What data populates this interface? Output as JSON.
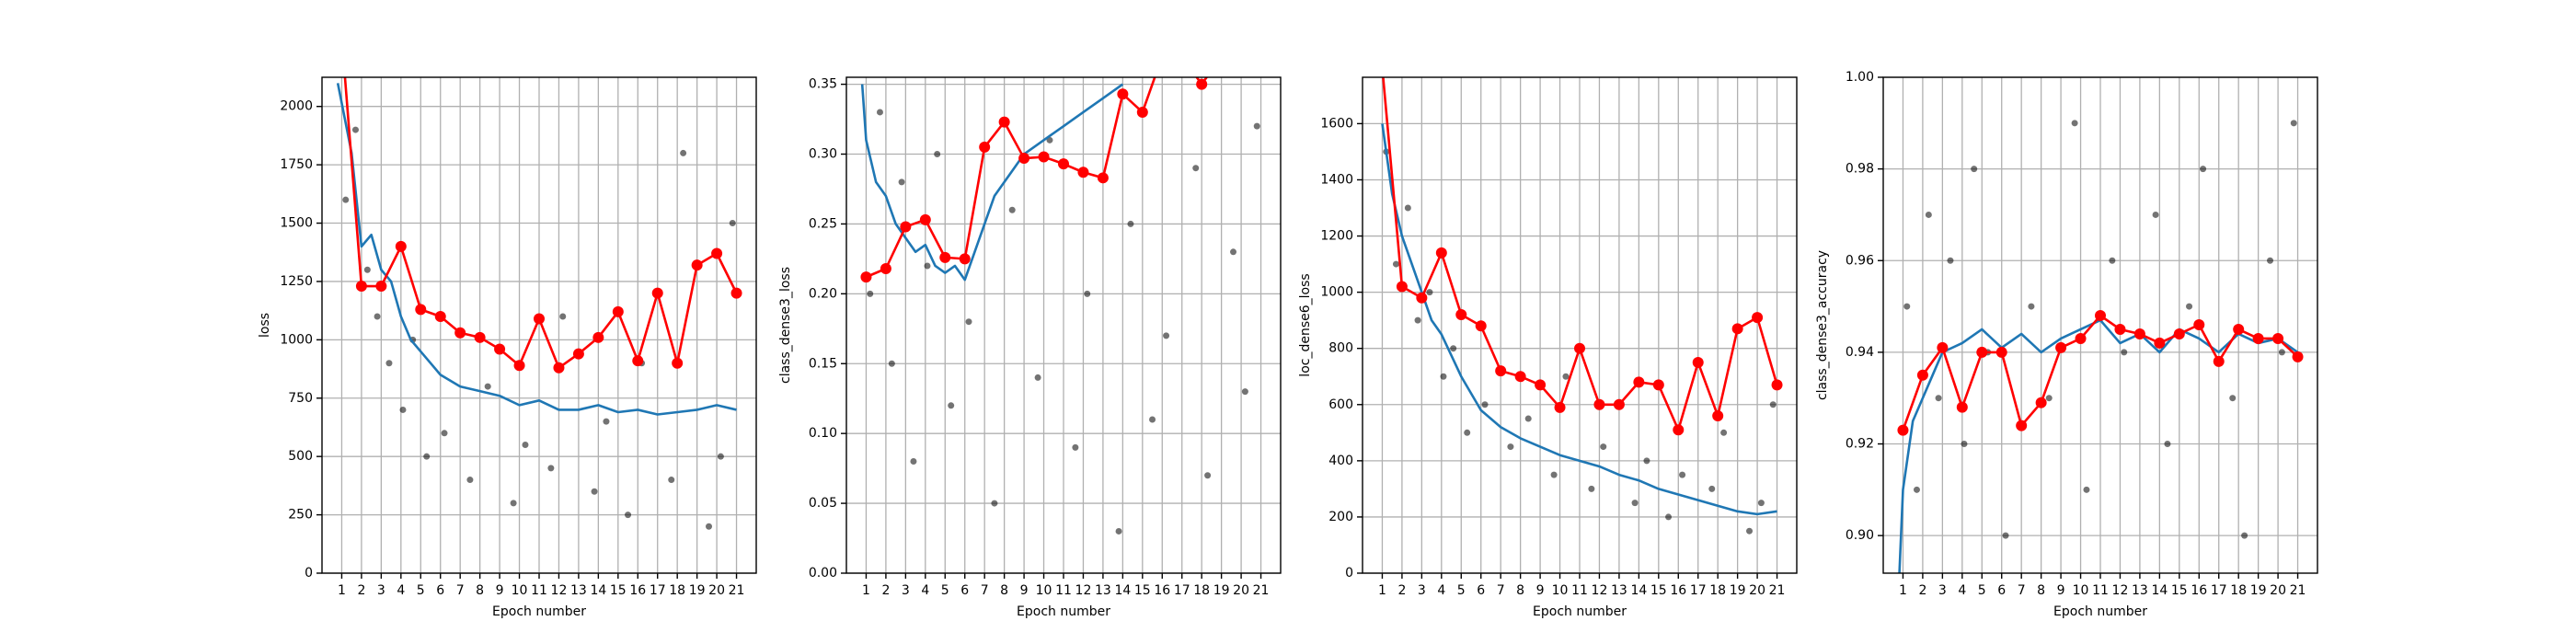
{
  "chart_data": [
    {
      "type": "scatter",
      "xlabel": "Epoch number",
      "ylabel": "loss",
      "grid": true,
      "xlim": [
        0,
        22
      ],
      "ylim": [
        0,
        2125
      ],
      "xticks": [
        1,
        2,
        3,
        4,
        5,
        6,
        7,
        8,
        9,
        10,
        11,
        12,
        13,
        14,
        15,
        16,
        17,
        18,
        19,
        20,
        21
      ],
      "yticks": [
        0,
        250,
        500,
        750,
        1000,
        1250,
        1500,
        1750,
        2000
      ],
      "series": [
        {
          "type": "scatter",
          "color": "#000000",
          "x": [
            1.2,
            1.7,
            2.3,
            2.8,
            3.4,
            4.1,
            4.6,
            5.3,
            6.2,
            7.5,
            8.4,
            9.7,
            10.3,
            11.6,
            12.2,
            13.8,
            14.4,
            15.5,
            16.2,
            17.7,
            18.3,
            19.6,
            20.2,
            20.8
          ],
          "values": [
            1600,
            1900,
            1300,
            1100,
            900,
            700,
            1000,
            500,
            600,
            400,
            800,
            300,
            550,
            450,
            1100,
            350,
            650,
            250,
            900,
            400,
            1800,
            200,
            500,
            1500
          ]
        },
        {
          "type": "line",
          "color": "#1f77b4",
          "x": [
            0.8,
            1.5,
            2,
            2.5,
            3,
            3.5,
            4,
            4.5,
            5,
            5.5,
            6,
            7,
            8,
            9,
            10,
            11,
            12,
            13,
            14,
            15,
            16,
            17,
            18,
            19,
            20,
            21
          ],
          "values": [
            2100,
            1800,
            1400,
            1450,
            1300,
            1250,
            1100,
            1000,
            950,
            900,
            850,
            800,
            780,
            760,
            720,
            740,
            700,
            700,
            720,
            690,
            700,
            680,
            690,
            700,
            720,
            700
          ]
        },
        {
          "type": "line",
          "marker": true,
          "color": "#ff0000",
          "x": [
            1,
            2,
            3,
            4,
            5,
            6,
            7,
            8,
            9,
            10,
            11,
            12,
            13,
            14,
            15,
            16,
            17,
            18,
            19,
            20,
            21
          ],
          "values": [
            2300,
            1230,
            1230,
            1400,
            1130,
            1100,
            1030,
            1010,
            960,
            890,
            1090,
            880,
            940,
            1010,
            1120,
            910,
            1200,
            900,
            1320,
            1370,
            1200
          ]
        }
      ]
    },
    {
      "type": "scatter",
      "xlabel": "Epoch number",
      "ylabel": "class_dense3_loss",
      "grid": true,
      "xlim": [
        0,
        22
      ],
      "ylim": [
        0,
        0.355
      ],
      "xticks": [
        1,
        2,
        3,
        4,
        5,
        6,
        7,
        8,
        9,
        10,
        11,
        12,
        13,
        14,
        15,
        16,
        17,
        18,
        19,
        20,
        21
      ],
      "yticks": [
        {
          "value": 0,
          "label": "0.00"
        },
        {
          "value": 0.05,
          "label": "0.05"
        },
        {
          "value": 0.1,
          "label": "0.10"
        },
        {
          "value": 0.15,
          "label": "0.15"
        },
        {
          "value": 0.2,
          "label": "0.20"
        },
        {
          "value": 0.25,
          "label": "0.25"
        },
        {
          "value": 0.3,
          "label": "0.30"
        },
        {
          "value": 0.35,
          "label": "0.35"
        }
      ],
      "series": [
        {
          "type": "scatter",
          "color": "#000000",
          "x": [
            1.2,
            1.7,
            2.3,
            2.8,
            3.4,
            4.1,
            4.6,
            5.3,
            6.2,
            7.5,
            8.4,
            9.7,
            10.3,
            11.6,
            12.2,
            13.8,
            14.4,
            15.5,
            16.2,
            17.7,
            18.3,
            19.6,
            20.2,
            20.8
          ],
          "values": [
            0.2,
            0.33,
            0.15,
            0.28,
            0.08,
            0.22,
            0.3,
            0.12,
            0.18,
            0.05,
            0.26,
            0.14,
            0.31,
            0.09,
            0.2,
            0.03,
            0.25,
            0.11,
            0.17,
            0.29,
            0.07,
            0.23,
            0.13,
            0.32
          ]
        },
        {
          "type": "line",
          "color": "#1f77b4",
          "x": [
            0.8,
            1,
            1.5,
            2,
            2.5,
            3,
            3.5,
            4,
            4.5,
            5,
            5.5,
            6,
            6.5,
            7,
            7.5,
            8,
            8.5,
            9,
            10,
            11,
            12,
            13,
            14
          ],
          "values": [
            0.35,
            0.31,
            0.28,
            0.27,
            0.25,
            0.24,
            0.23,
            0.235,
            0.22,
            0.215,
            0.22,
            0.21,
            0.23,
            0.25,
            0.27,
            0.28,
            0.29,
            0.3,
            0.31,
            0.32,
            0.33,
            0.34,
            0.35
          ]
        },
        {
          "type": "line",
          "marker": true,
          "color": "#ff0000",
          "x": [
            1,
            2,
            3,
            4,
            5,
            6,
            7,
            8,
            9,
            10,
            11,
            12,
            13,
            14,
            15,
            16,
            17,
            18,
            19,
            20,
            21
          ],
          "values": [
            0.212,
            0.218,
            0.248,
            0.253,
            0.226,
            0.225,
            0.305,
            0.323,
            0.297,
            0.298,
            0.293,
            0.287,
            0.283,
            0.343,
            0.33,
            0.37,
            0.37,
            0.35,
            0.37,
            0.37,
            0.37
          ]
        }
      ]
    },
    {
      "type": "scatter",
      "xlabel": "Epoch number",
      "ylabel": "loc_dense6_loss",
      "grid": true,
      "xlim": [
        0,
        22
      ],
      "ylim": [
        0,
        1765
      ],
      "xticks": [
        1,
        2,
        3,
        4,
        5,
        6,
        7,
        8,
        9,
        10,
        11,
        12,
        13,
        14,
        15,
        16,
        17,
        18,
        19,
        20,
        21
      ],
      "yticks": [
        0,
        200,
        400,
        600,
        800,
        1000,
        1200,
        1400,
        1600
      ],
      "series": [
        {
          "type": "scatter",
          "color": "#000000",
          "x": [
            1.2,
            1.7,
            2.3,
            2.8,
            3.4,
            4.1,
            4.6,
            5.3,
            6.2,
            7.5,
            8.4,
            9.7,
            10.3,
            11.6,
            12.2,
            13.8,
            14.4,
            15.5,
            16.2,
            17.7,
            18.3,
            19.6,
            20.2,
            20.8
          ],
          "values": [
            1500,
            1100,
            1300,
            900,
            1000,
            700,
            800,
            500,
            600,
            450,
            550,
            350,
            700,
            300,
            450,
            250,
            400,
            200,
            350,
            300,
            500,
            150,
            250,
            600
          ]
        },
        {
          "type": "line",
          "color": "#1f77b4",
          "x": [
            1,
            1.5,
            2,
            2.5,
            3,
            3.5,
            4,
            5,
            6,
            7,
            8,
            9,
            10,
            11,
            12,
            13,
            14,
            15,
            16,
            17,
            18,
            19,
            20,
            21
          ],
          "values": [
            1600,
            1350,
            1200,
            1100,
            1000,
            900,
            850,
            700,
            580,
            520,
            480,
            450,
            420,
            400,
            380,
            350,
            330,
            300,
            280,
            260,
            240,
            220,
            210,
            220
          ]
        },
        {
          "type": "line",
          "marker": true,
          "color": "#ff0000",
          "x": [
            1,
            2,
            3,
            4,
            5,
            6,
            7,
            8,
            9,
            10,
            11,
            12,
            13,
            14,
            15,
            16,
            17,
            18,
            19,
            20,
            21
          ],
          "values": [
            1800,
            1020,
            980,
            1140,
            920,
            880,
            720,
            700,
            670,
            590,
            800,
            600,
            600,
            680,
            670,
            510,
            750,
            560,
            870,
            910,
            670
          ]
        }
      ]
    },
    {
      "type": "scatter",
      "xlabel": "Epoch number",
      "ylabel": "class_dense3_accuracy",
      "grid": true,
      "xlim": [
        0,
        22
      ],
      "ylim": [
        0.8918,
        1.0
      ],
      "xticks": [
        1,
        2,
        3,
        4,
        5,
        6,
        7,
        8,
        9,
        10,
        11,
        12,
        13,
        14,
        15,
        16,
        17,
        18,
        19,
        20,
        21
      ],
      "yticks": [
        {
          "value": 0.9,
          "label": "0.90"
        },
        {
          "value": 0.92,
          "label": "0.92"
        },
        {
          "value": 0.94,
          "label": "0.94"
        },
        {
          "value": 0.96,
          "label": "0.96"
        },
        {
          "value": 0.98,
          "label": "0.98"
        },
        {
          "value": 1.0,
          "label": "1.00"
        }
      ],
      "series": [
        {
          "type": "scatter",
          "color": "#000000",
          "x": [
            1.2,
            1.7,
            2.3,
            2.8,
            3.4,
            4.1,
            4.6,
            5.3,
            6.2,
            7.5,
            8.4,
            9.7,
            10.3,
            11.6,
            12.2,
            13.8,
            14.4,
            15.5,
            16.2,
            17.7,
            18.3,
            19.6,
            20.2,
            20.8
          ],
          "values": [
            0.95,
            0.91,
            0.97,
            0.93,
            0.96,
            0.92,
            0.98,
            0.94,
            0.9,
            0.95,
            0.93,
            0.99,
            0.91,
            0.96,
            0.94,
            0.97,
            0.92,
            0.95,
            0.98,
            0.93,
            0.9,
            0.96,
            0.94,
            0.99
          ]
        },
        {
          "type": "line",
          "color": "#1f77b4",
          "x": [
            0.8,
            1,
            1.5,
            2,
            2.5,
            3,
            4,
            5,
            6,
            7,
            8,
            9,
            10,
            11,
            12,
            13,
            14,
            15,
            16,
            17,
            18,
            19,
            20,
            21
          ],
          "values": [
            0.89,
            0.91,
            0.925,
            0.93,
            0.935,
            0.94,
            0.942,
            0.945,
            0.941,
            0.944,
            0.94,
            0.943,
            0.945,
            0.947,
            0.942,
            0.944,
            0.94,
            0.945,
            0.943,
            0.94,
            0.944,
            0.942,
            0.943,
            0.94
          ]
        },
        {
          "type": "line",
          "marker": true,
          "color": "#ff0000",
          "x": [
            1,
            2,
            3,
            4,
            5,
            6,
            7,
            8,
            9,
            10,
            11,
            12,
            13,
            14,
            15,
            16,
            17,
            18,
            19,
            20,
            21
          ],
          "values": [
            0.923,
            0.935,
            0.941,
            0.928,
            0.94,
            0.94,
            0.924,
            0.929,
            0.941,
            0.943,
            0.948,
            0.945,
            0.944,
            0.942,
            0.944,
            0.946,
            0.938,
            0.945,
            0.943,
            0.943,
            0.939
          ]
        }
      ]
    }
  ]
}
